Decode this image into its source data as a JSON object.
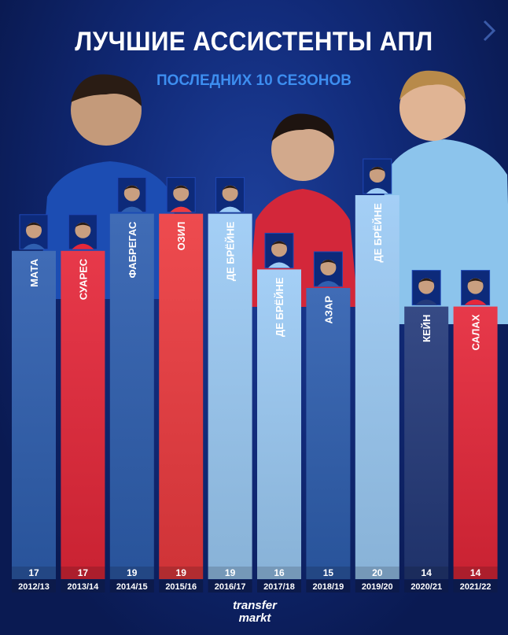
{
  "header": {
    "title": "ЛУЧШИЕ АССИСТЕНТЫ АПЛ",
    "subtitle": "ПОСЛЕДНИХ 10 СЕЗОНОВ",
    "subtitle_color": "#3d8ef0"
  },
  "colors": {
    "chelsea": "#2f5fb0",
    "liverpool": "#e5283a",
    "arsenal": "#ec3b40",
    "city": "#9ccbf5",
    "tottenham": "#243a7a",
    "background": "#0a1a52"
  },
  "logo": {
    "line1": "transfer",
    "line2": "markt"
  },
  "chart_data": {
    "type": "bar",
    "title": "ЛУЧШИЕ АССИСТЕНТЫ АПЛ",
    "subtitle": "ПОСЛЕДНИХ 10 СЕЗОНОВ",
    "categories": [
      "2012/13",
      "2013/14",
      "2014/15",
      "2015/16",
      "2016/17",
      "2017/18",
      "2018/19",
      "2019/20",
      "2020/21",
      "2021/22"
    ],
    "players": [
      "МАТА",
      "СУАРЕС",
      "ФАБРЕГАС",
      "ОЗИЛ",
      "ДЕ БРЁЙНЕ",
      "ДЕ БРЁЙНЕ",
      "АЗАР",
      "ДЕ БРЁЙНЕ",
      "КЕЙН",
      "САЛАХ"
    ],
    "values": [
      17,
      17,
      19,
      19,
      19,
      16,
      15,
      20,
      14,
      14
    ],
    "bar_colors": [
      "chelsea",
      "liverpool",
      "chelsea",
      "arsenal",
      "city",
      "city",
      "chelsea",
      "city",
      "tottenham",
      "liverpool"
    ],
    "ylim": [
      0,
      20
    ],
    "grid": false,
    "legend": "none"
  }
}
